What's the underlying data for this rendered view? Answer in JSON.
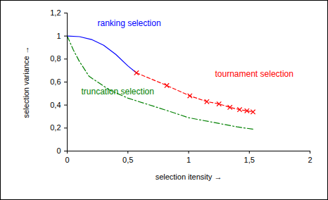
{
  "chart_data": {
    "type": "line",
    "x_label": "selection itensity",
    "y_label": "selection variance",
    "xlim": [
      0,
      2
    ],
    "ylim": [
      0,
      1.2
    ],
    "xticks": [
      0,
      {
        "value": 0.5,
        "label": "0,5"
      },
      1,
      {
        "value": 1.5,
        "label": "1,5"
      },
      2
    ],
    "yticks": [
      0,
      {
        "value": 0.2,
        "label": "0,2"
      },
      {
        "value": 0.4,
        "label": "0,4"
      },
      {
        "value": 0.6,
        "label": "0,6"
      },
      {
        "value": 0.8,
        "label": "0,8"
      },
      1,
      {
        "value": 1.2,
        "label": "1,2"
      }
    ],
    "grid": false,
    "series": [
      {
        "name": "ranking selection",
        "color": "#0000ff",
        "line_style": "solid",
        "x": [
          0,
          0.1,
          0.2,
          0.3,
          0.4,
          0.5,
          0.57
        ],
        "values": [
          1,
          0.995,
          0.97,
          0.92,
          0.84,
          0.74,
          0.68
        ]
      },
      {
        "name": "tournament selection",
        "color": "#ff0000",
        "line_style": "dashed",
        "marker": "x",
        "x": [
          0.57,
          0.82,
          1.01,
          1.15,
          1.25,
          1.34,
          1.42,
          1.48,
          1.53
        ],
        "values": [
          0.68,
          0.57,
          0.48,
          0.43,
          0.41,
          0.38,
          0.36,
          0.35,
          0.34
        ]
      },
      {
        "name": "truncation selection",
        "color": "#008000",
        "line_style": "dashdot",
        "x": [
          0,
          0.05,
          0.1,
          0.18,
          0.25,
          0.35,
          0.5,
          0.65,
          0.8,
          1.0,
          1.2,
          1.4,
          1.53
        ],
        "values": [
          1,
          0.88,
          0.78,
          0.65,
          0.6,
          0.53,
          0.46,
          0.41,
          0.36,
          0.29,
          0.25,
          0.21,
          0.19
        ]
      }
    ]
  }
}
